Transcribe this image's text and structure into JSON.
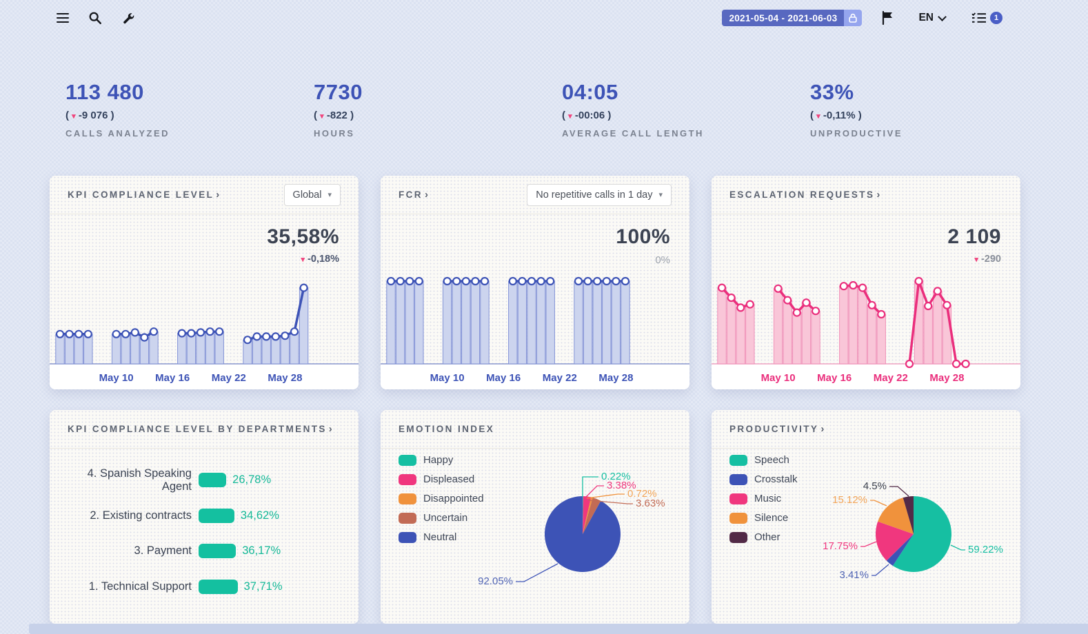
{
  "topbar": {
    "date_range": "2021-05-04 - 2021-06-03",
    "language": "EN",
    "tasks_badge": "1"
  },
  "stats": [
    {
      "value": "113 480",
      "change": "-9 076",
      "label": "CALLS ANALYZED"
    },
    {
      "value": "7730",
      "change": "-822",
      "label": "HOURS"
    },
    {
      "value": "04:05",
      "change": "-00:06",
      "label": "AVERAGE CALL LENGTH"
    },
    {
      "value": "33%",
      "change": "-0,11%",
      "label": "UNPRODUCTIVE"
    }
  ],
  "cards": {
    "kpi": {
      "title": "KPI COMPLIANCE LEVEL",
      "arrow": "›",
      "dropdown": "Global",
      "value": "35,58%",
      "change": "-0,18%"
    },
    "fcr": {
      "title": "FCR",
      "arrow": "›",
      "dropdown": "No repetitive calls in 1 day",
      "value": "100%",
      "secondary": "0%"
    },
    "escalation": {
      "title": "ESCALATION REQUESTS",
      "arrow": "›",
      "value": "2 109",
      "change": "-290"
    },
    "departments": {
      "title": "KPI COMPLIANCE LEVEL BY DEPARTMENTS",
      "arrow": "›"
    },
    "emotion": {
      "title": "EMOTION INDEX",
      "arrow": ""
    },
    "productivity": {
      "title": "PRODUCTIVITY",
      "arrow": "›"
    }
  },
  "chart_data": [
    {
      "id": "kpi_compliance_trend",
      "type": "bar-line",
      "title": "KPI COMPLIANCE LEVEL",
      "current_value": "35,58%",
      "change": "-0,18%",
      "ylim": [
        0,
        100
      ],
      "x_tick_labels": [
        "May 10",
        "May 16",
        "May 22",
        "May 28"
      ],
      "tick_days": [
        10,
        16,
        22,
        28
      ],
      "color": "#3d53b6",
      "fill": "#ccd4ee",
      "edge": "#8292d6",
      "axis": "#8a97cf",
      "tick_color": "#3d53b6",
      "groups": [
        {
          "days": [
            4,
            5,
            6,
            7
          ],
          "values": [
            36,
            36,
            36,
            36
          ]
        },
        {
          "days": [
            10,
            11,
            12,
            13,
            14
          ],
          "values": [
            36,
            36,
            38,
            32,
            39
          ]
        },
        {
          "days": [
            17,
            18,
            19,
            20,
            21
          ],
          "values": [
            37,
            37,
            38,
            39,
            39
          ]
        },
        {
          "days": [
            24,
            25,
            26,
            27,
            28,
            29,
            30
          ],
          "values": [
            29,
            33,
            33,
            33,
            34,
            39,
            92
          ]
        }
      ]
    },
    {
      "id": "fcr_trend",
      "type": "bar-line",
      "title": "FCR",
      "current_value": "100%",
      "secondary_value": "0%",
      "ylim": [
        0,
        100
      ],
      "x_tick_labels": [
        "May 10",
        "May 16",
        "May 22",
        "May 28"
      ],
      "tick_days": [
        10,
        16,
        22,
        28
      ],
      "color": "#3d53b6",
      "fill": "#ccd4ee",
      "edge": "#8292d6",
      "axis": "#8a97cf",
      "tick_color": "#3d53b6",
      "groups": [
        {
          "days": [
            4,
            5,
            6,
            7
          ],
          "values": [
            100,
            100,
            100,
            100
          ]
        },
        {
          "days": [
            10,
            11,
            12,
            13,
            14
          ],
          "values": [
            100,
            100,
            100,
            100,
            100
          ]
        },
        {
          "days": [
            17,
            18,
            19,
            20,
            21
          ],
          "values": [
            100,
            100,
            100,
            100,
            100
          ]
        },
        {
          "days": [
            24,
            25,
            26,
            27,
            28,
            29
          ],
          "values": [
            100,
            100,
            100,
            100,
            100,
            100
          ]
        }
      ]
    },
    {
      "id": "escalation_trend",
      "type": "area-line",
      "title": "ESCALATION REQUESTS",
      "current_value": "2 109",
      "change": "-290",
      "ylim": [
        0,
        100
      ],
      "x_tick_labels": [
        "May 10",
        "May 16",
        "May 22",
        "May 28"
      ],
      "tick_days": [
        10,
        16,
        22,
        28
      ],
      "color": "#ea2e7c",
      "fill": "#f9c6d8",
      "edge": "#f090b8",
      "axis": "#f0a3c4",
      "tick_color": "#ea2e7c",
      "groups": [
        {
          "days": [
            4,
            5,
            6,
            7
          ],
          "values": [
            92,
            80,
            68,
            72
          ]
        },
        {
          "days": [
            10,
            11,
            12,
            13,
            14
          ],
          "values": [
            91,
            77,
            62,
            74,
            64
          ]
        },
        {
          "days": [
            17,
            18,
            19,
            20,
            21
          ],
          "values": [
            94,
            95,
            92,
            71,
            60
          ]
        },
        {
          "days": [
            24,
            25,
            26,
            27,
            28,
            29,
            30
          ],
          "values": [
            0,
            100,
            70,
            88,
            71,
            0,
            0
          ]
        }
      ]
    },
    {
      "id": "departments",
      "type": "hbar",
      "title": "KPI COMPLIANCE LEVEL BY DEPARTMENTS",
      "bar_color": "#14c0a0",
      "value_color": "#14b897",
      "categories": [
        "4. Spanish Speaking Agent",
        "2. Existing contracts",
        "3. Payment",
        "1. Technical Support"
      ],
      "values": [
        26.78,
        34.62,
        36.17,
        37.71
      ],
      "value_labels": [
        "26,78%",
        "34,62%",
        "36,17%",
        "37,71%"
      ]
    },
    {
      "id": "emotion_index",
      "type": "pie",
      "title": "EMOTION INDEX",
      "legend_position": "left",
      "labels": [
        "Happy",
        "Displeased",
        "Disappointed",
        "Uncertain",
        "Neutral"
      ],
      "values": [
        0.22,
        3.38,
        0.72,
        3.63,
        92.05
      ],
      "value_labels": [
        "0.22%",
        "3.38%",
        "0.72%",
        "3.63%",
        "92.05%"
      ],
      "colors": [
        "#16bfa2",
        "#f0377e",
        "#f0923c",
        "#c26b55",
        "#3d53b6"
      ],
      "label_colors": [
        "#16bfa2",
        "#f0377e",
        "#f2a558",
        "#c26b55",
        "#5064b4"
      ]
    },
    {
      "id": "productivity",
      "type": "pie",
      "title": "PRODUCTIVITY",
      "legend_position": "left",
      "labels": [
        "Speech",
        "Crosstalk",
        "Music",
        "Silence",
        "Other"
      ],
      "values": [
        59.22,
        3.41,
        17.75,
        15.12,
        4.5
      ],
      "value_labels": [
        "59.22%",
        "3.41%",
        "17.75%",
        "15.12%",
        "4.5%"
      ],
      "colors": [
        "#16bfa2",
        "#3d53b6",
        "#f0377e",
        "#f0923c",
        "#522a47"
      ],
      "label_colors": [
        "#16bfa2",
        "#5064b4",
        "#f0377e",
        "#f2a558",
        "#3a3f4c"
      ]
    }
  ]
}
